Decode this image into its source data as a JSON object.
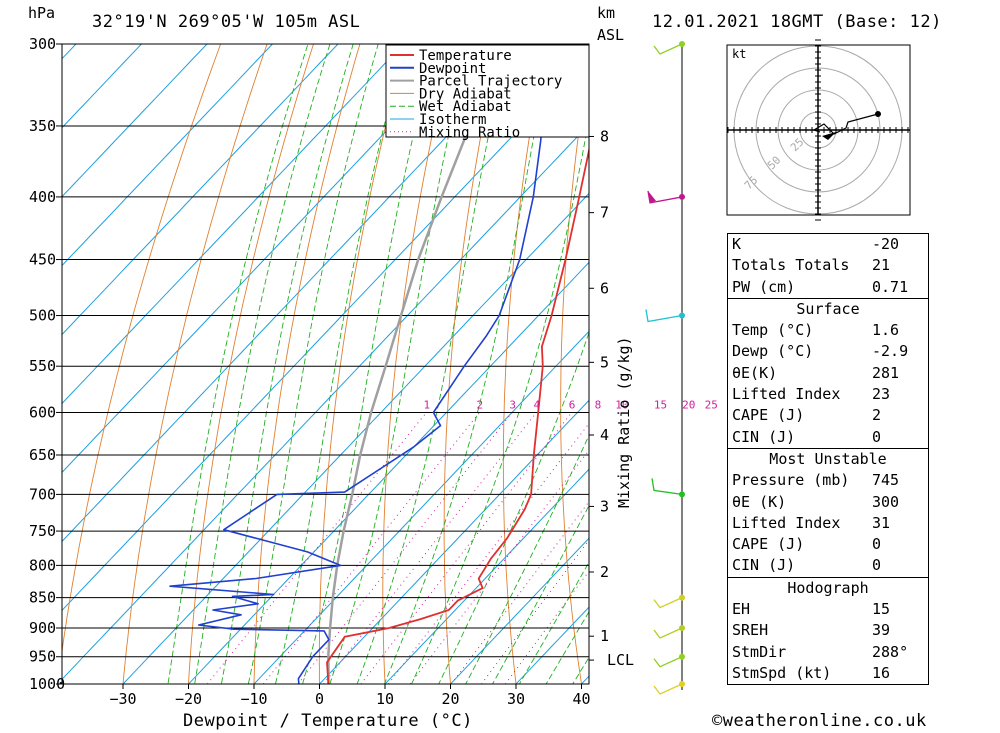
{
  "header": {
    "unit_hpa": "hPa",
    "location": "32°19'N 269°05'W 105m ASL",
    "km_label": "km",
    "asl_label": "ASL",
    "datetime": "12.01.2021 18GMT (Base: 12)"
  },
  "footer": {
    "xaxis_label": "Dewpoint / Temperature (°C)",
    "mixing_label": "Mixing Ratio (g/kg)",
    "credit": "©weatheronline.co.uk"
  },
  "legend": [
    "Temperature",
    "Dewpoint",
    "Parcel Trajectory",
    "Dry Adiabat",
    "Wet Adiabat",
    "Isotherm",
    "Mixing Ratio"
  ],
  "hodograph": {
    "unit": "kt",
    "ring_labels": [
      "25",
      "50",
      "75"
    ]
  },
  "indices": {
    "block1": [
      {
        "label": "K",
        "value": "-20"
      },
      {
        "label": "Totals Totals",
        "value": "21"
      },
      {
        "label": "PW (cm)",
        "value": "0.71"
      }
    ],
    "surface_title": "Surface",
    "surface": [
      {
        "label": "Temp (°C)",
        "value": "1.6"
      },
      {
        "label": "Dewp (°C)",
        "value": "-2.9"
      },
      {
        "label": "θE(K)",
        "value": "281"
      },
      {
        "label": "Lifted Index",
        "value": "23"
      },
      {
        "label": "CAPE (J)",
        "value": "2"
      },
      {
        "label": "CIN (J)",
        "value": "0"
      }
    ],
    "mu_title": "Most Unstable",
    "mu": [
      {
        "label": "Pressure (mb)",
        "value": "745"
      },
      {
        "label": "θE (K)",
        "value": "300"
      },
      {
        "label": "Lifted Index",
        "value": "31"
      },
      {
        "label": "CAPE (J)",
        "value": "0"
      },
      {
        "label": "CIN (J)",
        "value": "0"
      }
    ],
    "hodo_title": "Hodograph",
    "hodo": [
      {
        "label": "EH",
        "value": "15"
      },
      {
        "label": "SREH",
        "value": "39"
      },
      {
        "label": "StmDir",
        "value": "288°"
      },
      {
        "label": "StmSpd (kt)",
        "value": "16"
      }
    ]
  },
  "colors": {
    "temperature": "#e03030",
    "dewpoint": "#2040d0",
    "parcel": "#a0a0a0",
    "dry_adiabat": "#e08030",
    "wet_adiabat": "#20b020",
    "isotherm": "#20a0e0",
    "mixing": "#d020a0"
  },
  "chart_data": {
    "type": "line",
    "chart_kind": "skew-T log-P",
    "y_pressure_hpa": [
      300,
      350,
      400,
      450,
      500,
      550,
      600,
      650,
      700,
      750,
      800,
      850,
      900,
      950,
      1000
    ],
    "x_temperature_ticks_c": [
      -30,
      -20,
      -10,
      0,
      10,
      20,
      30,
      40
    ],
    "height_km_ticks": [
      "8",
      "7",
      "6",
      "5",
      "4",
      "3",
      "2",
      "1",
      "LCL"
    ],
    "mixing_ratio_labels": [
      "1",
      "2",
      "3",
      "4",
      "6",
      "8",
      "10",
      "15",
      "20",
      "25"
    ],
    "xlim": [
      -40,
      40
    ],
    "ylim": [
      1000,
      300
    ],
    "series": [
      {
        "name": "Temperature",
        "points": [
          [
            1003,
            1.6
          ],
          [
            960,
            -2
          ],
          [
            915,
            -3
          ],
          [
            900,
            2.5
          ],
          [
            885,
            6
          ],
          [
            870,
            9
          ],
          [
            855,
            9
          ],
          [
            835,
            11
          ],
          [
            820,
            9
          ],
          [
            790,
            8
          ],
          [
            760,
            7.5
          ],
          [
            720,
            6
          ],
          [
            700,
            4.8
          ],
          [
            650,
            -0.5
          ],
          [
            600,
            -6
          ],
          [
            550,
            -12
          ],
          [
            530,
            -15
          ],
          [
            500,
            -18
          ],
          [
            450,
            -24
          ],
          [
            400,
            -31
          ],
          [
            350,
            -39
          ],
          [
            320,
            -45
          ],
          [
            300,
            -49
          ]
        ]
      },
      {
        "name": "Dewpoint",
        "points": [
          [
            1003,
            -2.9
          ],
          [
            990,
            -4
          ],
          [
            950,
            -5
          ],
          [
            920,
            -5
          ],
          [
            905,
            -7
          ],
          [
            902,
            -21
          ],
          [
            895,
            -27
          ],
          [
            878,
            -22
          ],
          [
            870,
            -27
          ],
          [
            860,
            -21
          ],
          [
            848,
            -26
          ],
          [
            845,
            -20
          ],
          [
            832,
            -37
          ],
          [
            820,
            -25
          ],
          [
            800,
            -14
          ],
          [
            780,
            -21
          ],
          [
            748,
            -37
          ],
          [
            700,
            -34
          ],
          [
            697,
            -24
          ],
          [
            640,
            -20
          ],
          [
            615,
            -19
          ],
          [
            600,
            -22
          ],
          [
            550,
            -24
          ],
          [
            520,
            -25
          ],
          [
            500,
            -26
          ],
          [
            450,
            -31
          ],
          [
            400,
            -38
          ],
          [
            360,
            -45
          ],
          [
            345,
            -48
          ],
          [
            300,
            -56
          ]
        ]
      },
      {
        "name": "Parcel Trajectory",
        "points": [
          [
            1003,
            1.6
          ],
          [
            945,
            -3
          ],
          [
            900,
            -6.5
          ],
          [
            850,
            -10.5
          ],
          [
            800,
            -14.5
          ],
          [
            750,
            -18.5
          ],
          [
            700,
            -22.5
          ],
          [
            650,
            -27
          ],
          [
            600,
            -31.5
          ],
          [
            550,
            -36
          ],
          [
            500,
            -41
          ],
          [
            450,
            -46.5
          ],
          [
            400,
            -52
          ],
          [
            350,
            -58
          ],
          [
            310,
            -63
          ]
        ]
      }
    ],
    "wind_barbs_hpa": [
      300,
      400,
      500,
      700,
      850,
      900,
      950,
      1000
    ]
  }
}
